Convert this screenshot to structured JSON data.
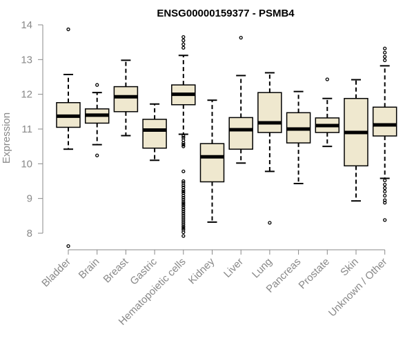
{
  "chart_data": {
    "type": "boxplot",
    "title": "ENSG00000159377 - PSMB4",
    "xlabel": "",
    "ylabel": "Expression",
    "ylim": [
      7.6,
      14.15
    ],
    "yticks": [
      8,
      9,
      10,
      11,
      12,
      13,
      14
    ],
    "ytick_labels": [
      "8",
      "9",
      "10",
      "11",
      "12",
      "13",
      "14"
    ],
    "grid": false,
    "box_fill": "#efe8cf",
    "stroke_color": "#000000",
    "categories": [
      "Bladder",
      "Brain",
      "Breast",
      "Gastric",
      "Hematopoietic cells",
      "Kidney",
      "Liver",
      "Lung",
      "Pancreas",
      "Prostate",
      "Skin",
      "Unknown / Other"
    ],
    "boxes": [
      {
        "whisker_low": 10.42,
        "q1": 11.05,
        "median": 11.37,
        "q3": 11.76,
        "whisker_high": 12.57,
        "outliers": [
          13.87,
          7.63
        ]
      },
      {
        "whisker_low": 10.55,
        "q1": 11.17,
        "median": 11.4,
        "q3": 11.58,
        "whisker_high": 12.05,
        "outliers": [
          12.27,
          10.24
        ]
      },
      {
        "whisker_low": 10.81,
        "q1": 11.5,
        "median": 11.93,
        "q3": 12.22,
        "whisker_high": 12.98,
        "outliers": []
      },
      {
        "whisker_low": 10.1,
        "q1": 10.45,
        "median": 10.97,
        "q3": 11.28,
        "whisker_high": 11.72,
        "outliers": []
      },
      {
        "whisker_low": 10.85,
        "q1": 11.7,
        "median": 12.0,
        "q3": 12.27,
        "whisker_high": 13.12,
        "outliers": [
          13.65,
          13.55,
          13.44,
          13.34,
          10.8,
          10.75,
          10.68,
          10.6,
          10.55,
          10.5,
          9.78,
          9.5,
          9.45,
          9.38,
          9.32,
          9.25,
          9.2,
          9.15,
          9.08,
          9.02,
          8.96,
          8.9,
          8.85,
          8.8,
          8.74,
          8.68,
          8.62,
          8.56,
          8.5,
          8.44,
          8.38,
          8.32,
          8.26,
          8.2,
          8.15,
          8.1,
          8.03,
          7.92
        ]
      },
      {
        "whisker_low": 8.32,
        "q1": 9.48,
        "median": 10.2,
        "q3": 10.58,
        "whisker_high": 11.83,
        "outliers": []
      },
      {
        "whisker_low": 10.02,
        "q1": 10.42,
        "median": 10.98,
        "q3": 11.33,
        "whisker_high": 12.54,
        "outliers": [
          13.63
        ]
      },
      {
        "whisker_low": 9.78,
        "q1": 10.9,
        "median": 11.18,
        "q3": 12.05,
        "whisker_high": 12.62,
        "outliers": [
          8.3
        ]
      },
      {
        "whisker_low": 9.43,
        "q1": 10.6,
        "median": 11.0,
        "q3": 11.47,
        "whisker_high": 12.08,
        "outliers": []
      },
      {
        "whisker_low": 10.5,
        "q1": 10.9,
        "median": 11.1,
        "q3": 11.32,
        "whisker_high": 11.88,
        "outliers": [
          12.43
        ]
      },
      {
        "whisker_low": 8.93,
        "q1": 9.94,
        "median": 10.9,
        "q3": 11.88,
        "whisker_high": 12.42,
        "outliers": []
      },
      {
        "whisker_low": 9.58,
        "q1": 10.8,
        "median": 11.12,
        "q3": 11.63,
        "whisker_high": 12.82,
        "outliers": [
          13.32,
          13.2,
          13.08,
          12.98,
          9.52,
          9.4,
          9.3,
          9.2,
          9.08,
          8.95,
          8.88,
          8.38
        ]
      }
    ]
  }
}
